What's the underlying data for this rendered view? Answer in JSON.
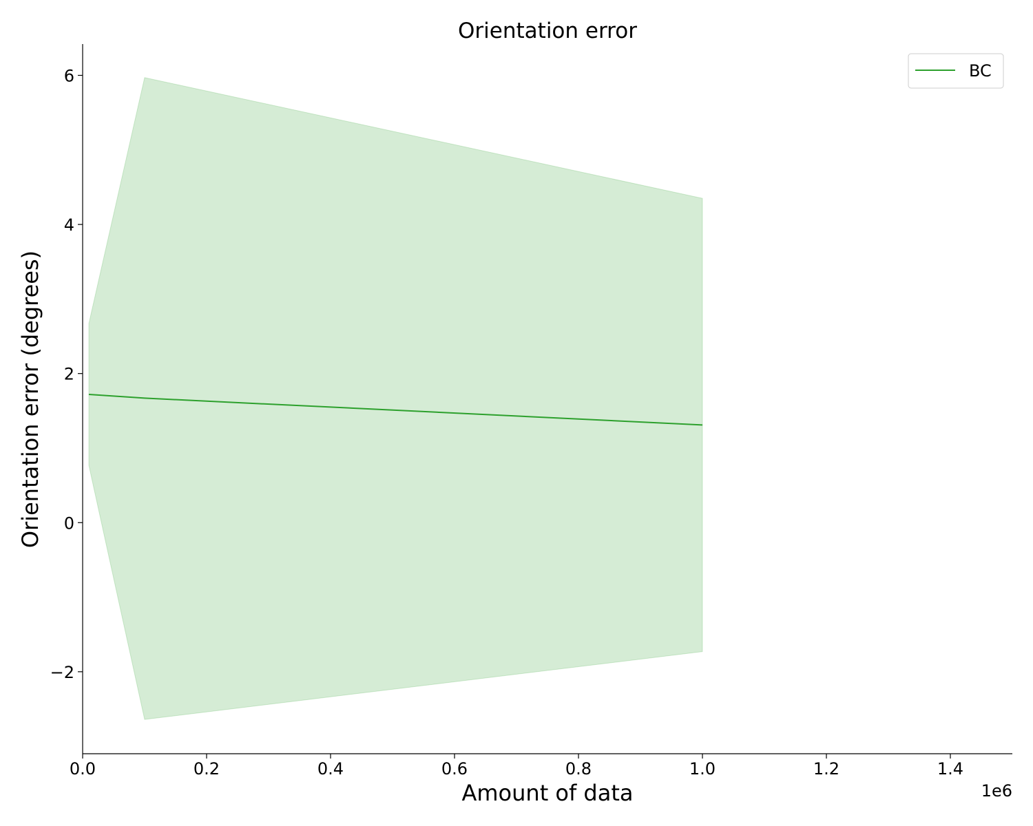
{
  "chart_data": {
    "type": "line",
    "title": "Orientation error",
    "xlabel": "Amount of data",
    "ylabel": "Orientation error (degrees)",
    "x_offset_label": "1e6",
    "xlim": [
      0,
      1500000
    ],
    "ylim": [
      -3.1,
      6.42
    ],
    "x_ticks": [
      0,
      200000,
      400000,
      600000,
      800000,
      1000000,
      1200000,
      1400000
    ],
    "x_tick_labels": [
      "0.0",
      "0.2",
      "0.4",
      "0.6",
      "0.8",
      "1.0",
      "1.2",
      "1.4"
    ],
    "y_ticks": [
      -2,
      0,
      2,
      4,
      6
    ],
    "y_tick_labels": [
      "−2",
      "0",
      "2",
      "4",
      "6"
    ],
    "grid": false,
    "legend_position": "top-right",
    "series": [
      {
        "name": "BC",
        "color": "#2ca02c",
        "band_color": "#2ca02c",
        "x": [
          10000,
          100000,
          1000000
        ],
        "y": [
          1.72,
          1.67,
          1.31
        ],
        "upper": [
          2.67,
          5.97,
          4.35
        ],
        "lower": [
          0.77,
          -2.64,
          -1.73
        ]
      }
    ]
  }
}
